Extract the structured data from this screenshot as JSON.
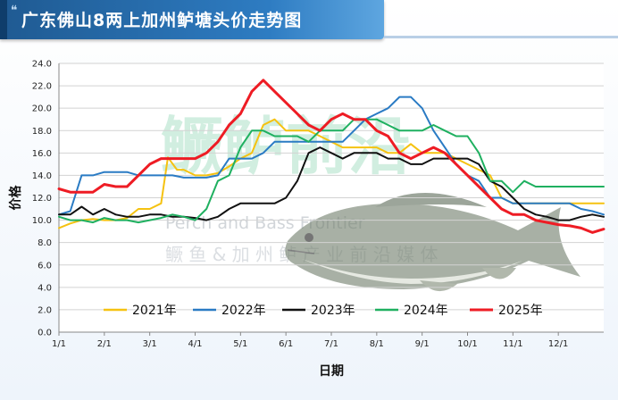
{
  "header": {
    "title": "广东佛山8两上加州鲈塘头价走势图"
  },
  "watermark": {
    "brand": "鳜鲈前沿",
    "english": "Perch and Bass Frontier",
    "tagline": "鳜 鱼 & 加 州 鲈 产 业 前 沿 媒 体"
  },
  "chart_data": {
    "type": "line",
    "title": "广东佛山8两上加州鲈塘头价走势图",
    "xlabel": "日期",
    "ylabel": "价格",
    "xlim": [
      0,
      12
    ],
    "ylim": [
      0,
      24
    ],
    "y_ticks": [
      "0.0",
      "2.0",
      "4.0",
      "6.0",
      "8.0",
      "10.0",
      "12.0",
      "14.0",
      "16.0",
      "18.0",
      "20.0",
      "22.0",
      "24.0"
    ],
    "x_ticks": [
      "1/1",
      "2/1",
      "3/1",
      "4/1",
      "5/1",
      "6/1",
      "7/1",
      "8/1",
      "9/1",
      "10/1",
      "11/1",
      "12/1"
    ],
    "grid": "horizontal",
    "legend": "bottom",
    "series": [
      {
        "name": "2021年",
        "color": "#f5c211",
        "x": [
          0,
          0.25,
          0.5,
          0.75,
          1,
          1.25,
          1.5,
          1.75,
          2,
          2.25,
          2.4,
          2.6,
          2.75,
          3,
          3.25,
          3.5,
          3.75,
          4,
          4.25,
          4.5,
          4.75,
          5,
          5.15,
          5.3,
          5.5,
          5.75,
          6,
          6.25,
          6.5,
          6.75,
          7,
          7.25,
          7.5,
          7.75,
          8,
          8.25,
          8.5,
          8.75,
          9,
          9.25,
          9.5,
          9.75,
          10,
          10.25,
          10.5,
          10.75,
          11,
          11.25,
          11.5,
          11.75,
          12
        ],
        "values": [
          9.3,
          9.7,
          10.0,
          10.1,
          10.0,
          10.0,
          10.2,
          11.0,
          11.0,
          11.5,
          15.6,
          14.5,
          14.5,
          14.0,
          14.0,
          14.2,
          14.8,
          15.5,
          16.0,
          18.5,
          19.0,
          18.0,
          18.0,
          18.0,
          18.0,
          17.5,
          17.0,
          16.5,
          16.5,
          16.5,
          16.5,
          16.0,
          16.0,
          16.8,
          16.0,
          16.0,
          16.0,
          15.5,
          15.0,
          14.5,
          14.0,
          12.0,
          11.5,
          11.5,
          11.5,
          11.5,
          11.5,
          11.5,
          11.5,
          11.5,
          11.5
        ]
      },
      {
        "name": "2022年",
        "color": "#2a7bc4",
        "x": [
          0,
          0.25,
          0.5,
          0.75,
          1,
          1.25,
          1.5,
          1.75,
          2,
          2.25,
          2.5,
          2.75,
          3,
          3.25,
          3.5,
          3.75,
          4,
          4.25,
          4.5,
          4.75,
          5,
          5.25,
          5.5,
          5.75,
          6,
          6.25,
          6.5,
          6.75,
          7,
          7.25,
          7.5,
          7.75,
          8,
          8.25,
          8.5,
          8.75,
          9,
          9.25,
          9.5,
          9.75,
          10,
          10.25,
          10.5,
          10.75,
          11,
          11.25,
          11.5,
          11.75,
          12
        ],
        "values": [
          10.5,
          10.8,
          14.0,
          14.0,
          14.3,
          14.3,
          14.3,
          14.0,
          14.0,
          14.0,
          14.0,
          13.8,
          13.8,
          13.8,
          14.0,
          15.5,
          15.5,
          15.5,
          16.0,
          17.0,
          17.0,
          17.0,
          17.0,
          17.0,
          17.0,
          17.0,
          18.0,
          19.0,
          19.5,
          20.0,
          21.0,
          21.0,
          20.0,
          18.0,
          16.5,
          15.0,
          14.0,
          13.5,
          12.0,
          12.0,
          11.5,
          11.5,
          11.5,
          11.5,
          11.5,
          11.5,
          11.0,
          10.8,
          10.5
        ]
      },
      {
        "name": "2023年",
        "color": "#111111",
        "x": [
          0,
          0.25,
          0.5,
          0.75,
          1,
          1.25,
          1.5,
          1.75,
          2,
          2.25,
          2.5,
          2.75,
          3,
          3.25,
          3.5,
          3.75,
          4,
          4.25,
          4.5,
          4.75,
          5,
          5.25,
          5.5,
          5.75,
          6,
          6.25,
          6.5,
          6.75,
          7,
          7.25,
          7.5,
          7.75,
          8,
          8.25,
          8.5,
          8.75,
          9,
          9.25,
          9.5,
          9.75,
          10,
          10.25,
          10.5,
          10.75,
          11,
          11.25,
          11.5,
          11.75,
          12
        ],
        "values": [
          10.5,
          10.5,
          11.2,
          10.5,
          11.0,
          10.5,
          10.3,
          10.3,
          10.5,
          10.5,
          10.3,
          10.3,
          10.2,
          10.0,
          10.3,
          11.0,
          11.5,
          11.5,
          11.5,
          11.5,
          12.0,
          13.5,
          16.0,
          16.5,
          16.0,
          15.5,
          16.0,
          16.0,
          16.0,
          15.5,
          15.5,
          15.0,
          15.0,
          15.5,
          15.5,
          15.5,
          15.5,
          15.0,
          13.5,
          13.0,
          12.0,
          11.0,
          10.5,
          10.3,
          10.0,
          10.0,
          10.3,
          10.5,
          10.3
        ]
      },
      {
        "name": "2024年",
        "color": "#1fb060",
        "x": [
          0,
          0.25,
          0.5,
          0.75,
          1,
          1.25,
          1.5,
          1.75,
          2,
          2.25,
          2.5,
          2.75,
          3,
          3.25,
          3.5,
          3.75,
          4,
          4.25,
          4.5,
          4.75,
          5,
          5.25,
          5.5,
          5.75,
          6,
          6.25,
          6.5,
          6.75,
          7,
          7.25,
          7.5,
          7.75,
          8,
          8.25,
          8.5,
          8.75,
          9,
          9.25,
          9.5,
          9.75,
          10,
          10.25,
          10.5,
          10.75,
          11,
          11.25,
          11.5,
          11.75,
          12
        ],
        "values": [
          10.3,
          10.0,
          10.0,
          9.8,
          10.2,
          10.0,
          10.0,
          9.8,
          10.0,
          10.2,
          10.5,
          10.3,
          10.0,
          11.0,
          13.5,
          14.0,
          16.5,
          18.0,
          18.0,
          17.5,
          17.5,
          17.5,
          17.0,
          18.0,
          18.0,
          18.0,
          19.0,
          19.0,
          19.0,
          18.5,
          18.0,
          18.0,
          18.0,
          18.5,
          18.0,
          17.5,
          17.5,
          16.0,
          13.5,
          13.5,
          12.5,
          13.5,
          13.0,
          13.0,
          13.0,
          13.0,
          13.0,
          13.0,
          13.0
        ]
      },
      {
        "name": "2025年",
        "color": "#ee1c24",
        "x": [
          0,
          0.25,
          0.5,
          0.75,
          1,
          1.25,
          1.5,
          1.75,
          2,
          2.25,
          2.5,
          2.75,
          3,
          3.25,
          3.5,
          3.75,
          4,
          4.25,
          4.5,
          4.75,
          5,
          5.25,
          5.5,
          5.75,
          6,
          6.25,
          6.5,
          6.75,
          7,
          7.25,
          7.5,
          7.75,
          8,
          8.25,
          8.5,
          8.75,
          9,
          9.25,
          9.5,
          9.75,
          10,
          10.25,
          10.5,
          10.75,
          11,
          11.25,
          11.5,
          11.75,
          12
        ],
        "values": [
          12.8,
          12.5,
          12.5,
          12.5,
          13.2,
          13.0,
          13.0,
          14.0,
          15.0,
          15.5,
          15.5,
          15.5,
          15.5,
          16.0,
          17.0,
          18.5,
          19.5,
          21.5,
          22.5,
          21.5,
          20.5,
          19.5,
          18.5,
          18.0,
          19.0,
          19.5,
          19.0,
          19.0,
          18.0,
          17.5,
          16.0,
          15.5,
          16.0,
          16.5,
          16.0,
          15.0,
          14.0,
          13.0,
          12.0,
          11.0,
          10.5,
          10.5,
          10.0,
          9.8,
          9.6,
          9.5,
          9.3,
          8.9,
          9.2
        ]
      }
    ]
  }
}
